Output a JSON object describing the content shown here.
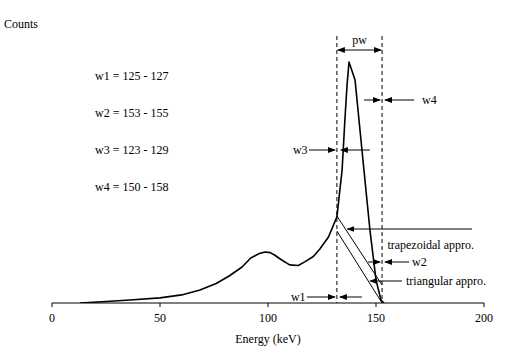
{
  "chart_data": {
    "type": "line",
    "x_label": "Energy (keV)",
    "y_label": "Counts",
    "xlim": [
      0,
      200
    ],
    "xticks": [
      0,
      50,
      100,
      150,
      200
    ],
    "ylim": [
      0,
      100
    ],
    "tick_labels": "x",
    "series": [
      {
        "x": [
          13,
          25,
          36,
          50,
          60,
          68.5,
          76,
          82,
          88,
          92,
          96,
          98.6,
          101,
          103,
          106,
          110,
          114,
          117,
          121,
          124,
          128,
          131.9,
          134.3,
          135.6,
          136.6,
          137.5,
          140.3,
          143.5,
          147.2,
          150,
          152.3,
          153.7
        ],
        "values": [
          0,
          0.5,
          1,
          1.7,
          2.7,
          4.3,
          6.5,
          9,
          12,
          15,
          16.5,
          17,
          16.8,
          16,
          14.5,
          12.7,
          12.5,
          13.7,
          15.5,
          18,
          22,
          28.7,
          44.3,
          61,
          72.7,
          80.3,
          74.3,
          51,
          24.3,
          7.7,
          1,
          0
        ],
        "color": "#000000"
      },
      {
        "x": [
          131.9,
          152.8
        ],
        "values": [
          29,
          6
        ],
        "color": "#000000"
      },
      {
        "x": [
          131.9,
          152.8
        ],
        "values": [
          24,
          0
        ],
        "color": "#000000"
      }
    ],
    "vlines": [
      131.9,
      152.8
    ],
    "window_labels": [
      "w1 = 125 - 127",
      "w2 = 153 - 155",
      "w3 = 123 - 129",
      "w4 = 150 - 158"
    ],
    "annotations": [
      "pw",
      "w1",
      "w2",
      "w3",
      "w4",
      "trapezoidal appro.",
      "triangular appro."
    ]
  }
}
